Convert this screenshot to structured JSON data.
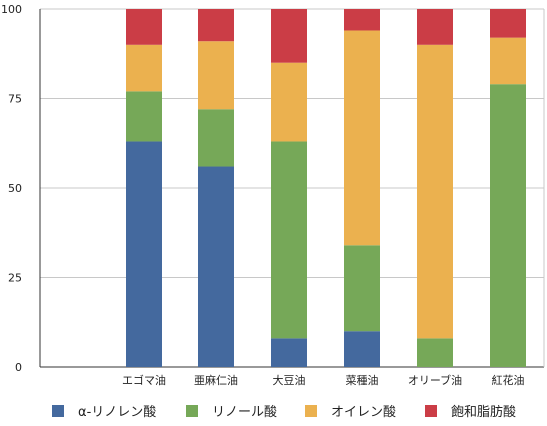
{
  "chart_data": {
    "type": "bar",
    "stacked": true,
    "categories": [
      "エゴマ油",
      "亜麻仁油",
      "大豆油",
      "菜種油",
      "オリーブ油",
      "紅花油"
    ],
    "series": [
      {
        "name": "α-リノレン酸",
        "color": "#44699E",
        "values": [
          63,
          56,
          8,
          10,
          0,
          0
        ]
      },
      {
        "name": "リノール酸",
        "color": "#76A858",
        "values": [
          14,
          16,
          55,
          24,
          8,
          79
        ]
      },
      {
        "name": "オイレン酸",
        "color": "#EBB14F",
        "values": [
          13,
          19,
          22,
          60,
          82,
          13
        ]
      },
      {
        "name": "飽和脂肪酸",
        "color": "#CB3D46",
        "values": [
          10,
          9,
          15,
          6,
          10,
          8
        ]
      }
    ],
    "ylim": [
      0,
      100
    ],
    "yticks": [
      0,
      25,
      50,
      75,
      100
    ],
    "grid": true,
    "legend_position": "bottom"
  }
}
